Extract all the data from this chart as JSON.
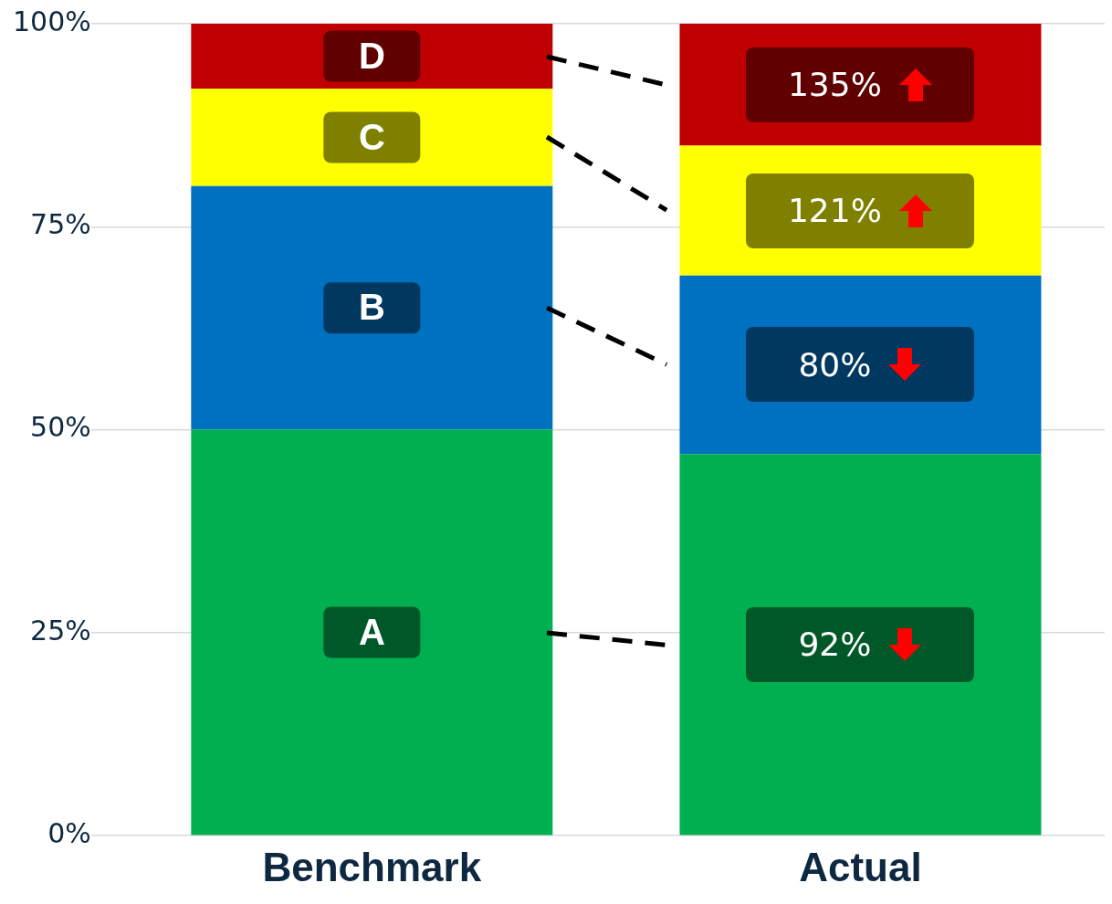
{
  "chart_data": {
    "type": "bar",
    "stacked": true,
    "categories": [
      "Benchmark",
      "Actual"
    ],
    "series": [
      {
        "name": "A",
        "color": "#00b050",
        "values": [
          50,
          47
        ]
      },
      {
        "name": "B",
        "color": "#0070c0",
        "values": [
          30,
          22
        ]
      },
      {
        "name": "C",
        "color": "#ffff00",
        "values": [
          12,
          16
        ]
      },
      {
        "name": "D",
        "color": "#c00000",
        "values": [
          8,
          15
        ]
      }
    ],
    "annotations": [
      "92%",
      "80%",
      "121%",
      "135%"
    ],
    "ylim": [
      0,
      100
    ],
    "yticks": [
      {
        "value": 0,
        "label": "0%"
      },
      {
        "value": 25,
        "label": "25%"
      },
      {
        "value": 50,
        "label": "50%"
      },
      {
        "value": 75,
        "label": "75%"
      },
      {
        "value": 100,
        "label": "100%"
      }
    ],
    "grid": "y",
    "legend": false
  }
}
